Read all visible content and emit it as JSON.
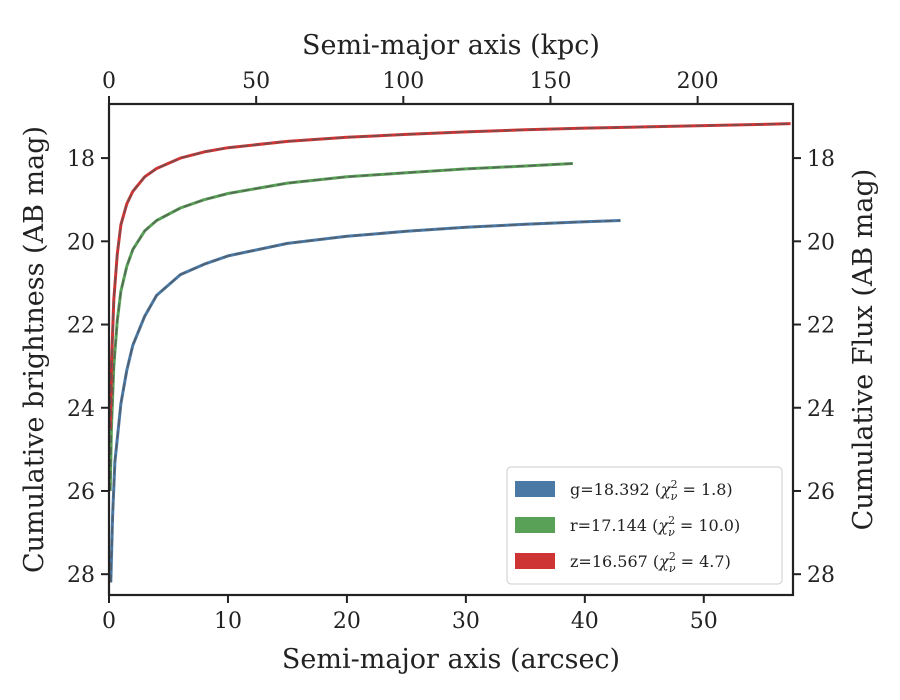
{
  "chart_data": {
    "type": "line",
    "xlabel": "Semi-major axis (arcsec)",
    "ylabel": "Cumulative brightness (AB mag)",
    "xlabel_top": "Semi-major axis (kpc)",
    "ylabel_right": "Cumulative Flux (AB mag)",
    "xlim": [
      0,
      57.5
    ],
    "ylim": [
      28.5,
      16.7
    ],
    "y_inverted": true,
    "xlim_top": [
      0,
      232.4
    ],
    "grid": false,
    "legend_position": "lower-right",
    "x_ticks": [
      "0",
      "10",
      "20",
      "30",
      "40",
      "50"
    ],
    "x_tick_values": [
      0,
      10,
      20,
      30,
      40,
      50
    ],
    "y_ticks": [
      "18",
      "20",
      "22",
      "24",
      "26",
      "28"
    ],
    "y_tick_values": [
      18,
      20,
      22,
      24,
      26,
      28
    ],
    "x_top_ticks": [
      "0",
      "50",
      "100",
      "150",
      "200"
    ],
    "x_top_tick_values": [
      0,
      50,
      100,
      150,
      200
    ],
    "series": [
      {
        "name": "g=18.392 (χ²ν = 1.8)",
        "legend": {
          "base": "g=18.392 (",
          "chi": "χ",
          "sup": "2",
          "sub": "ν",
          "rest": " = 1.8)"
        },
        "color": "#4a79a6",
        "x": [
          0.15,
          0.3,
          0.5,
          1,
          1.5,
          2,
          3,
          4,
          6,
          8,
          10,
          15,
          20,
          25,
          30,
          35,
          40,
          43
        ],
        "y": [
          28.2,
          26.6,
          25.3,
          23.9,
          23.1,
          22.5,
          21.8,
          21.3,
          20.8,
          20.55,
          20.35,
          20.05,
          19.88,
          19.76,
          19.66,
          19.59,
          19.53,
          19.5
        ]
      },
      {
        "name": "r=17.144 (χ²ν = 10.0)",
        "legend": {
          "base": "r=17.144 (",
          "chi": "χ",
          "sup": "2",
          "sub": "ν",
          "rest": " = 10.0)"
        },
        "color": "#58a156",
        "x": [
          0.1,
          0.2,
          0.4,
          0.7,
          1,
          1.5,
          2,
          3,
          4,
          6,
          8,
          10,
          15,
          20,
          25,
          30,
          35,
          39
        ],
        "y": [
          26.0,
          24.5,
          23.0,
          21.9,
          21.2,
          20.6,
          20.2,
          19.75,
          19.5,
          19.2,
          19.0,
          18.85,
          18.6,
          18.45,
          18.35,
          18.26,
          18.19,
          18.13
        ]
      },
      {
        "name": "z=16.567 (χ²ν = 4.7)",
        "legend": {
          "base": "z=16.567 (",
          "chi": "χ",
          "sup": "2",
          "sub": "ν",
          "rest": " = 4.7)"
        },
        "color": "#cf3434",
        "x": [
          0.1,
          0.2,
          0.4,
          0.7,
          1,
          1.5,
          2,
          3,
          4,
          6,
          8,
          10,
          15,
          20,
          25,
          30,
          35,
          40,
          45,
          50,
          55,
          57.3
        ],
        "y": [
          24.5,
          23.0,
          21.4,
          20.3,
          19.6,
          19.1,
          18.8,
          18.45,
          18.25,
          18.0,
          17.85,
          17.75,
          17.6,
          17.5,
          17.43,
          17.37,
          17.32,
          17.28,
          17.25,
          17.22,
          17.19,
          17.17
        ]
      }
    ]
  }
}
